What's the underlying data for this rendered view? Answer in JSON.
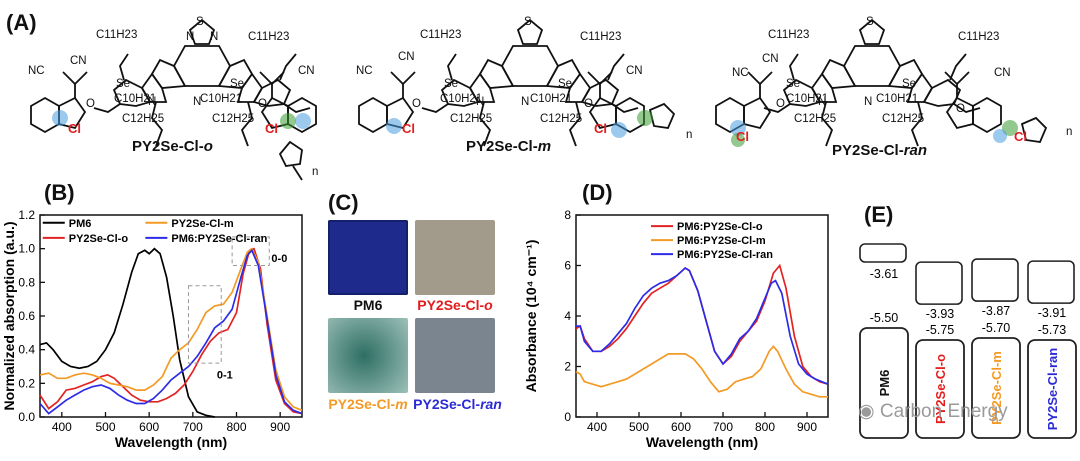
{
  "panels": {
    "A": "(A)",
    "B": "(B)",
    "C": "(C)",
    "D": "(D)",
    "E": "(E)"
  },
  "molecules": {
    "common": {
      "s_n": "S",
      "n": "N",
      "s": "S",
      "se": "Se",
      "c11": "C11H23",
      "cn": "CN",
      "nc": "NC",
      "o": "O",
      "c10": "C10H21",
      "c12": "C12H25",
      "cl": "Cl",
      "repeat": "n"
    },
    "names": [
      {
        "base": "PY2Se-Cl-",
        "suffix": "o"
      },
      {
        "base": "PY2Se-Cl-",
        "suffix": "m"
      },
      {
        "base": "PY2Se-Cl-",
        "suffix": "ran"
      }
    ]
  },
  "panel_b": {
    "chart_data": {
      "type": "line",
      "xlabel": "Wavelength (nm)",
      "ylabel": "Normalized absorption (a.u.)",
      "xlim": [
        350,
        950
      ],
      "ylim": [
        0,
        1.2
      ],
      "xticks": [
        400,
        500,
        600,
        700,
        800,
        900
      ],
      "yticks": [
        0.0,
        0.2,
        0.4,
        0.6,
        0.8,
        1.0,
        1.2
      ],
      "annotations": [
        "0-0",
        "0-1"
      ],
      "legend": [
        "PM6",
        "PY2Se-Cl-o",
        "PY2Se-Cl-m",
        "PM6:PY2Se-Cl-ran"
      ],
      "series": [
        {
          "name": "PM6",
          "color": "#000000",
          "x": [
            350,
            365,
            380,
            400,
            420,
            440,
            460,
            480,
            500,
            520,
            540,
            560,
            575,
            590,
            600,
            612,
            625,
            640,
            655,
            670,
            690,
            710,
            730,
            750
          ],
          "y": [
            0.43,
            0.44,
            0.4,
            0.33,
            0.3,
            0.29,
            0.3,
            0.33,
            0.4,
            0.5,
            0.67,
            0.86,
            0.97,
            0.99,
            0.97,
            1.0,
            0.97,
            0.83,
            0.6,
            0.34,
            0.12,
            0.03,
            0.01,
            0.0
          ]
        },
        {
          "name": "PY2Se-Cl-o",
          "color": "#e32222",
          "x": [
            350,
            370,
            390,
            410,
            430,
            450,
            470,
            490,
            505,
            520,
            540,
            560,
            580,
            600,
            620,
            640,
            660,
            680,
            700,
            720,
            740,
            760,
            780,
            800,
            815,
            830,
            840,
            855,
            870,
            890,
            910,
            930,
            950
          ],
          "y": [
            0.13,
            0.05,
            0.09,
            0.16,
            0.17,
            0.19,
            0.21,
            0.24,
            0.25,
            0.23,
            0.18,
            0.13,
            0.1,
            0.09,
            0.09,
            0.11,
            0.14,
            0.19,
            0.27,
            0.37,
            0.45,
            0.5,
            0.52,
            0.62,
            0.85,
            0.99,
            1.0,
            0.88,
            0.55,
            0.22,
            0.08,
            0.03,
            0.02
          ]
        },
        {
          "name": "PY2Se-Cl-m",
          "color": "#f39a25",
          "x": [
            350,
            370,
            390,
            410,
            430,
            450,
            470,
            490,
            510,
            530,
            550,
            570,
            590,
            610,
            630,
            650,
            670,
            690,
            710,
            730,
            750,
            770,
            790,
            810,
            825,
            835,
            850,
            870,
            890,
            910,
            930,
            950
          ],
          "y": [
            0.25,
            0.26,
            0.23,
            0.23,
            0.25,
            0.26,
            0.25,
            0.23,
            0.2,
            0.19,
            0.18,
            0.16,
            0.16,
            0.19,
            0.24,
            0.35,
            0.4,
            0.44,
            0.52,
            0.62,
            0.66,
            0.67,
            0.74,
            0.88,
            0.98,
            1.0,
            0.92,
            0.6,
            0.28,
            0.12,
            0.06,
            0.04
          ]
        },
        {
          "name": "PM6:PY2Se-Cl-ran",
          "color": "#2c2ce8",
          "x": [
            350,
            370,
            390,
            410,
            430,
            450,
            470,
            490,
            510,
            530,
            550,
            570,
            590,
            610,
            630,
            650,
            670,
            690,
            710,
            730,
            750,
            770,
            790,
            810,
            825,
            835,
            850,
            870,
            890,
            910,
            930,
            950
          ],
          "y": [
            0.08,
            0.02,
            0.06,
            0.1,
            0.13,
            0.16,
            0.18,
            0.19,
            0.17,
            0.13,
            0.1,
            0.08,
            0.08,
            0.11,
            0.16,
            0.22,
            0.26,
            0.3,
            0.36,
            0.44,
            0.53,
            0.57,
            0.64,
            0.83,
            0.96,
            0.99,
            0.9,
            0.58,
            0.25,
            0.09,
            0.04,
            0.02
          ]
        }
      ]
    }
  },
  "panel_c": {
    "films": [
      {
        "label": "PM6",
        "color": "#1e2b8c",
        "label_color": "#111111"
      },
      {
        "label_base": "PY2Se-Cl-",
        "label_suffix": "o",
        "color": "#a29a8a",
        "label_color": "#e31c1c"
      },
      {
        "label_base": "PY2Se-Cl-",
        "label_suffix": "m",
        "color": "#5a8f86",
        "label_color": "#f39a25"
      },
      {
        "label_base": "PY2Se-Cl-",
        "label_suffix": "ran",
        "color": "#7a8590",
        "label_color": "#2a2ad6"
      }
    ]
  },
  "panel_d": {
    "chart_data": {
      "type": "line",
      "xlabel": "Wavelength (nm)",
      "ylabel": "Absorbance (10⁴ cm⁻¹)",
      "xlim": [
        350,
        950
      ],
      "ylim": [
        0,
        8
      ],
      "xticks": [
        400,
        500,
        600,
        700,
        800,
        900
      ],
      "yticks": [
        0,
        2,
        4,
        6,
        8
      ],
      "legend": [
        "PM6:PY2Se-Cl-o",
        "PM6:PY2Se-Cl-m",
        "PM6:PY2Se-Cl-ran"
      ],
      "series": [
        {
          "name": "PM6:PY2Se-Cl-o",
          "color": "#e32222",
          "x": [
            350,
            360,
            370,
            390,
            410,
            430,
            450,
            470,
            490,
            510,
            530,
            550,
            570,
            590,
            610,
            620,
            640,
            660,
            680,
            700,
            720,
            740,
            760,
            780,
            800,
            820,
            835,
            850,
            870,
            890,
            910,
            930,
            950
          ],
          "y": [
            3.5,
            3.6,
            3.1,
            2.6,
            2.6,
            2.8,
            3.1,
            3.5,
            4.0,
            4.5,
            4.9,
            5.1,
            5.3,
            5.6,
            5.9,
            5.8,
            5.0,
            3.8,
            2.6,
            2.1,
            2.4,
            3.0,
            3.4,
            3.8,
            4.6,
            5.7,
            6.0,
            5.1,
            3.2,
            2.0,
            1.6,
            1.4,
            1.3
          ]
        },
        {
          "name": "PM6:PY2Se-Cl-m",
          "color": "#f39a25",
          "x": [
            350,
            360,
            370,
            390,
            410,
            430,
            450,
            470,
            490,
            510,
            530,
            550,
            570,
            590,
            610,
            630,
            650,
            670,
            690,
            710,
            730,
            750,
            770,
            790,
            810,
            820,
            830,
            850,
            870,
            890,
            910,
            930,
            950
          ],
          "y": [
            1.8,
            1.7,
            1.4,
            1.3,
            1.2,
            1.3,
            1.4,
            1.5,
            1.7,
            1.9,
            2.1,
            2.3,
            2.5,
            2.5,
            2.5,
            2.3,
            1.9,
            1.4,
            1.0,
            1.1,
            1.4,
            1.5,
            1.6,
            1.9,
            2.6,
            2.8,
            2.6,
            1.9,
            1.3,
            1.0,
            0.9,
            0.8,
            0.8
          ]
        },
        {
          "name": "PM6:PY2Se-Cl-ran",
          "color": "#2c2ce8",
          "x": [
            350,
            360,
            370,
            390,
            410,
            430,
            450,
            470,
            490,
            510,
            530,
            550,
            570,
            590,
            610,
            620,
            640,
            660,
            680,
            700,
            720,
            740,
            760,
            780,
            800,
            815,
            825,
            840,
            860,
            880,
            900,
            920,
            950
          ],
          "y": [
            3.6,
            3.6,
            3.0,
            2.6,
            2.6,
            2.9,
            3.3,
            3.7,
            4.3,
            4.8,
            5.1,
            5.3,
            5.4,
            5.6,
            5.9,
            5.8,
            5.0,
            3.8,
            2.6,
            2.1,
            2.5,
            3.1,
            3.4,
            3.9,
            4.7,
            5.3,
            5.4,
            4.9,
            3.2,
            2.1,
            1.7,
            1.5,
            1.3
          ]
        }
      ]
    }
  },
  "panel_e": {
    "lumo": [
      "-3.61",
      "-3.93",
      "-3.87",
      "-3.91"
    ],
    "homo": [
      "-5.50",
      "-5.75",
      "-5.70",
      "-5.73"
    ],
    "names": [
      {
        "text": "PM6",
        "color": "#111111"
      },
      {
        "text": "PY2Se-Cl-o",
        "color": "#e31c1c"
      },
      {
        "text": "PY2Se-Cl-m",
        "color": "#f39a25"
      },
      {
        "text": "PY2Se-Cl-ran",
        "color": "#2a2ad6"
      }
    ]
  },
  "watermark": "Carbon Energy"
}
